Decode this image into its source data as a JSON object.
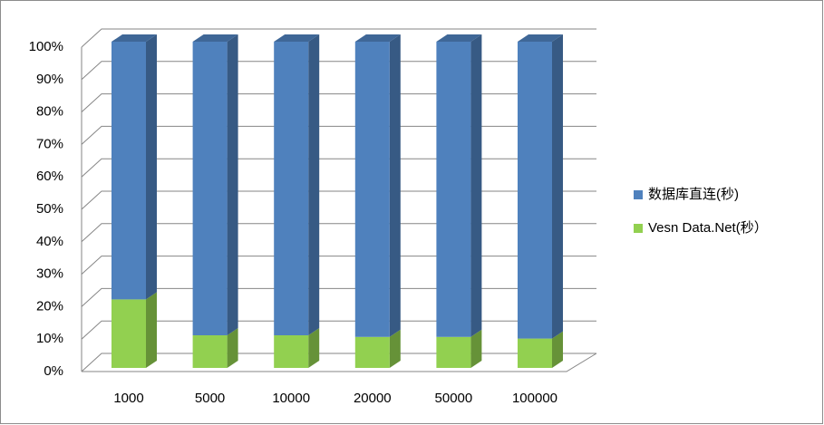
{
  "chart_data": {
    "type": "bar",
    "stacked": true,
    "categories": [
      "1000",
      "5000",
      "10000",
      "20000",
      "50000",
      "100000"
    ],
    "series": [
      {
        "name": "Vesn Data.Net(秒）",
        "color": "#92d050",
        "values": [
          21,
          10,
          10,
          9.5,
          9.5,
          9
        ]
      },
      {
        "name": "数据库直连(秒)",
        "color": "#4f81bd",
        "values": [
          79,
          90,
          90,
          90.5,
          90.5,
          91
        ]
      }
    ],
    "ylim": [
      0,
      100
    ],
    "yticks": [
      {
        "value": 0,
        "label": "0%"
      },
      {
        "value": 10,
        "label": "10%"
      },
      {
        "value": 20,
        "label": "20%"
      },
      {
        "value": 30,
        "label": "30%"
      },
      {
        "value": 40,
        "label": "40%"
      },
      {
        "value": 50,
        "label": "50%"
      },
      {
        "value": 60,
        "label": "60%"
      },
      {
        "value": 70,
        "label": "70%"
      },
      {
        "value": 80,
        "label": "80%"
      },
      {
        "value": 90,
        "label": "90%"
      },
      {
        "value": 100,
        "label": "100%"
      }
    ],
    "grid": true,
    "legend": "right"
  }
}
